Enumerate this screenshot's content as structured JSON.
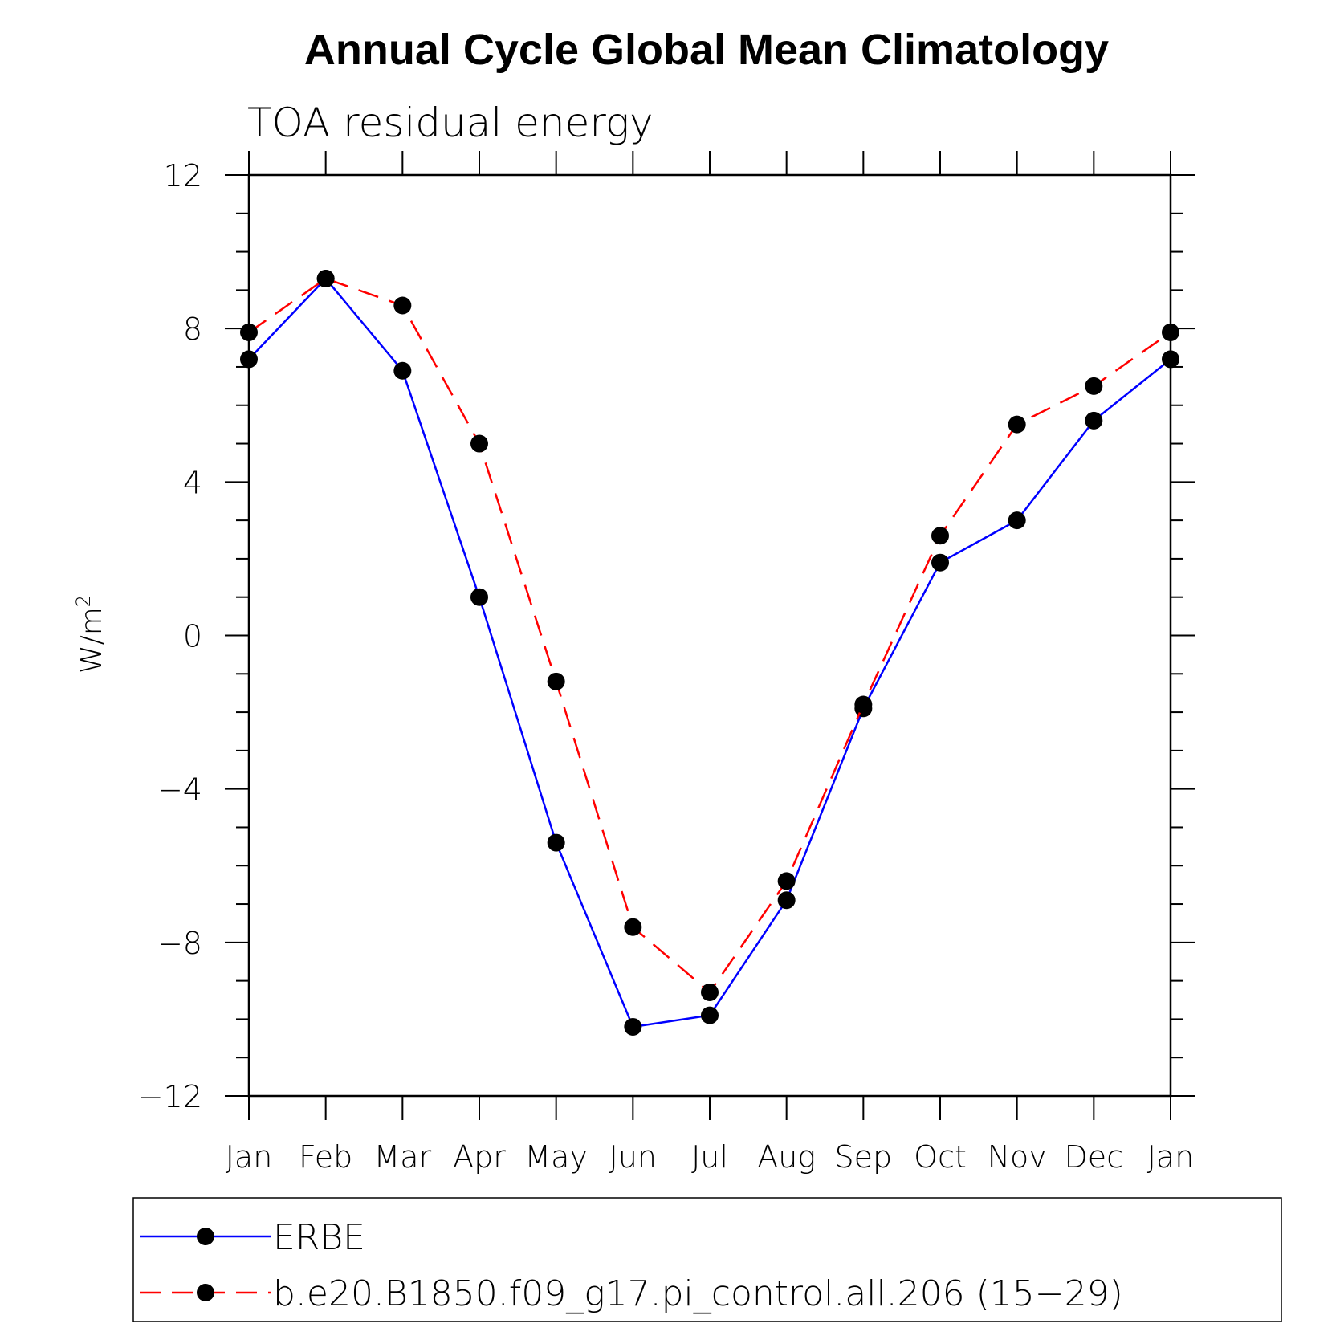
{
  "chart_data": {
    "type": "line",
    "title": "Annual Cycle Global Mean Climatology",
    "subtitle": "TOA residual energy",
    "ylabel": "W/m",
    "ylabel_superscript": "2",
    "xlabel": "",
    "categories": [
      "Jan",
      "Feb",
      "Mar",
      "Apr",
      "May",
      "Jun",
      "Jul",
      "Aug",
      "Sep",
      "Oct",
      "Nov",
      "Dec",
      "Jan"
    ],
    "ylim": [
      -12,
      12
    ],
    "yticks": [
      12,
      8,
      4,
      0,
      -4,
      -8,
      -12
    ],
    "ytick_labels": [
      "12",
      "8",
      "4",
      "0",
      "−4",
      "−8",
      "−12"
    ],
    "grid": false,
    "legend_position": "bottom",
    "series": [
      {
        "name": "ERBE",
        "color": "#0000ff",
        "dash": "solid",
        "marker": "filled-circle",
        "values": [
          7.2,
          9.3,
          6.9,
          1.0,
          -5.4,
          -10.2,
          -9.9,
          -6.9,
          -1.9,
          1.9,
          3.0,
          5.6,
          7.2
        ]
      },
      {
        "name": "b.e20.B1850.f09_g17.pi_control.all.206 (15−29)",
        "color": "#ff0000",
        "dash": "dashed",
        "marker": "filled-circle",
        "values": [
          7.9,
          9.3,
          8.6,
          5.0,
          -1.2,
          -7.6,
          -9.3,
          -6.4,
          -1.8,
          2.6,
          5.5,
          6.5,
          7.9
        ]
      }
    ]
  }
}
